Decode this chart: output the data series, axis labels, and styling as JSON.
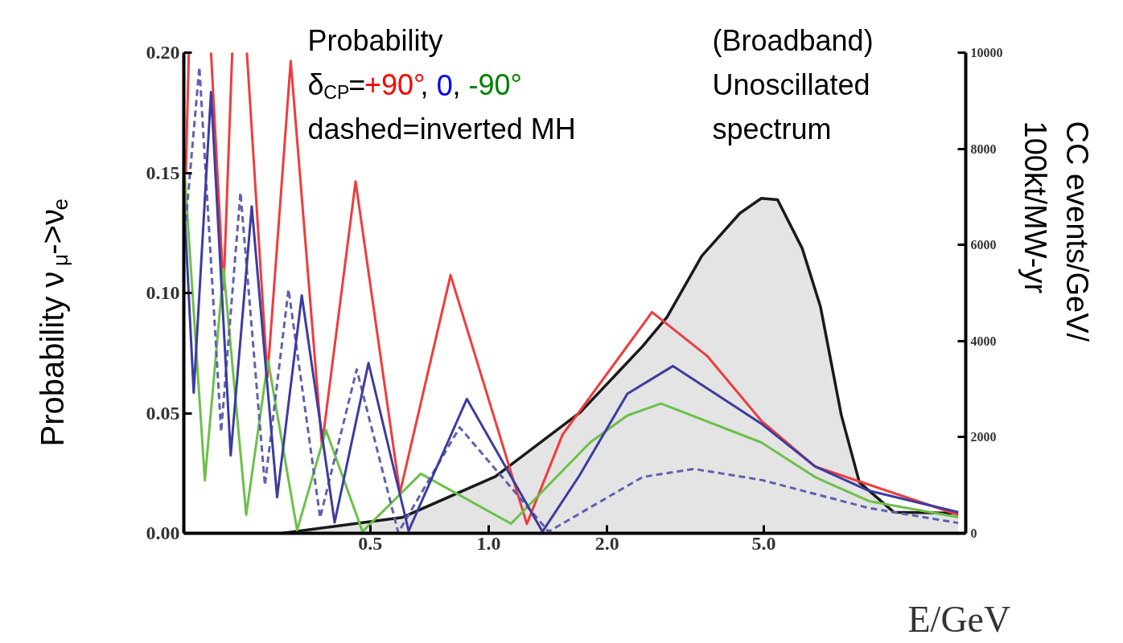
{
  "chart_data": {
    "type": "line",
    "xlabel": "E/GeV",
    "ylabel": "Probability ν$_{μ}$->ν$_{e}$",
    "y2label": "CC events/GeV/\n100kt/MW-yr",
    "log": "x",
    "xlim": [
      0.168,
      16.3
    ],
    "xticks": [
      {
        "value": 0.5,
        "label": "0.5"
      },
      {
        "value": 1,
        "label": "1.0"
      },
      {
        "value": 2,
        "label": "2.0"
      },
      {
        "value": 5,
        "label": "5.0"
      }
    ],
    "ylim": [
      0,
      0.2
    ],
    "yticks": [
      {
        "value": 0,
        "label": "0.00"
      },
      {
        "value": 0.05,
        "label": "0.05"
      },
      {
        "value": 0.1,
        "label": "0.10"
      },
      {
        "value": 0.15,
        "label": "0.15"
      },
      {
        "value": 0.2,
        "label": "0.20"
      }
    ],
    "y2lim": [
      0,
      10000
    ],
    "y2ticks": [
      0,
      2000,
      4000,
      6000,
      8000,
      10000
    ],
    "annotations": [
      "Probability",
      "δ$_{CP}$=+90°, 0, -90°",
      "dashed=inverted MH",
      "(Broadband)\nUnoscillated\nspectrum"
    ],
    "series": [
      {
        "type": "area",
        "axis": "y2",
        "color": "#1a1a1a",
        "x": [
          0.298,
          0.603,
          1.04,
          1.71,
          2.46,
          2.84,
          3.48,
          4.35,
          4.93,
          5.42,
          6.26,
          6.97,
          7.87,
          8.75,
          10.7,
          15.6
        ],
        "values": [
          0,
          330,
          1180,
          2520,
          3890,
          4500,
          5770,
          6660,
          6970,
          6940,
          5930,
          4710,
          2460,
          1060,
          440,
          420
        ]
      },
      {
        "color": "#f03c3c",
        "line_style": "solid",
        "x": [
          0.17,
          0.173,
          null,
          0.197,
          0.212,
          0.223,
          null,
          0.243,
          0.274,
          0.314,
          0.377,
          0.459,
          0.595,
          0.8,
          1.25,
          1.54,
          2.6,
          3.6,
          4.93,
          6.75,
          15.6
        ],
        "values": [
          0.15,
          0.2,
          null,
          0.2,
          0.1015,
          0.2,
          null,
          0.2,
          0.065,
          0.1965,
          0.0365,
          0.1464,
          0.0169,
          0.1074,
          0.0039,
          0.041,
          0.092,
          0.0736,
          0.0468,
          0.0278,
          0.0077
        ]
      },
      {
        "color": "#6cc04a",
        "line_style": "solid",
        "x": [
          0.168,
          0.19,
          0.212,
          0.242,
          0.275,
          0.326,
          0.386,
          0.478,
          0.672,
          1.14,
          1.81,
          2.25,
          2.74,
          4.93,
          6.75,
          9.25,
          15.6
        ],
        "values": [
          0.155,
          0.022,
          0.11,
          0.0077,
          0.072,
          0.0013,
          0.0429,
          0.0007,
          0.0248,
          0.004,
          0.0378,
          0.049,
          0.054,
          0.0378,
          0.0234,
          0.0134,
          0.0067
        ]
      },
      {
        "color": "#6060b0",
        "line_style": "dashed",
        "x": [
          0.17,
          0.184,
          0.209,
          0.234,
          0.27,
          0.31,
          0.373,
          0.462,
          0.589,
          0.844,
          1.42,
          2.46,
          3.32,
          4.93,
          9.25,
          15.6
        ],
        "values": [
          0.13,
          0.194,
          0.0422,
          0.1418,
          0.02,
          0.1015,
          0.0065,
          0.0682,
          0.0003,
          0.0441,
          0.0007,
          0.0234,
          0.0268,
          0.0222,
          0.0105,
          0.0043
        ]
      },
      {
        "color": "#3c3ca0",
        "line_style": "solid",
        "x": [
          0.168,
          0.178,
          0.197,
          0.221,
          0.25,
          0.29,
          0.335,
          0.406,
          0.495,
          0.626,
          0.88,
          1.37,
          1.7,
          2.25,
          2.94,
          4.93,
          6.75,
          9.25,
          15.6
        ],
        "values": [
          0.14,
          0.0585,
          0.1836,
          0.0324,
          0.136,
          0.015,
          0.099,
          0.0045,
          0.0709,
          0.001,
          0.0559,
          0.0007,
          0.024,
          0.058,
          0.0696,
          0.0456,
          0.0278,
          0.0177,
          0.0088
        ]
      }
    ]
  }
}
